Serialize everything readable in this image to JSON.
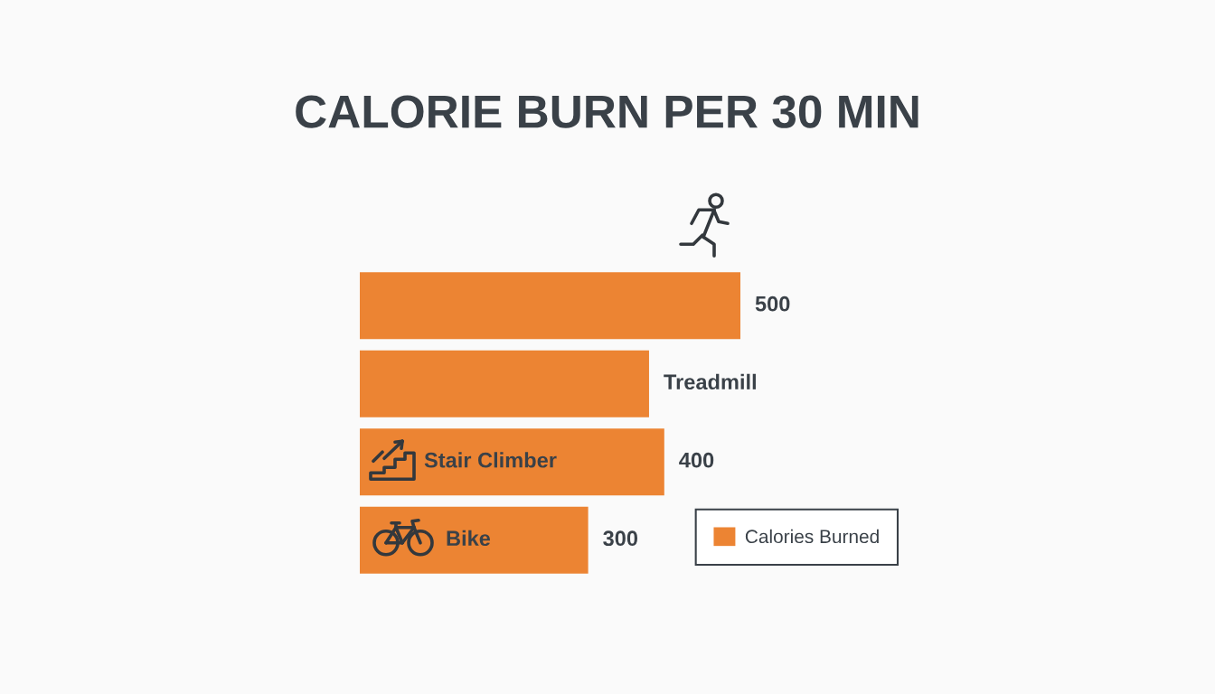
{
  "chart_data": {
    "type": "bar",
    "orientation": "horizontal",
    "title": "CALORIE BURN PER 30 MIN",
    "categories": [
      null,
      "Treadmill",
      "Stair Climber",
      "Bike"
    ],
    "series": [
      {
        "name": "Calories Burned",
        "color": "#ec8433",
        "values": [
          500,
          380,
          400,
          300
        ],
        "value_labels": [
          "500",
          null,
          "400",
          "300"
        ]
      }
    ],
    "legend": "bottom right"
  }
}
